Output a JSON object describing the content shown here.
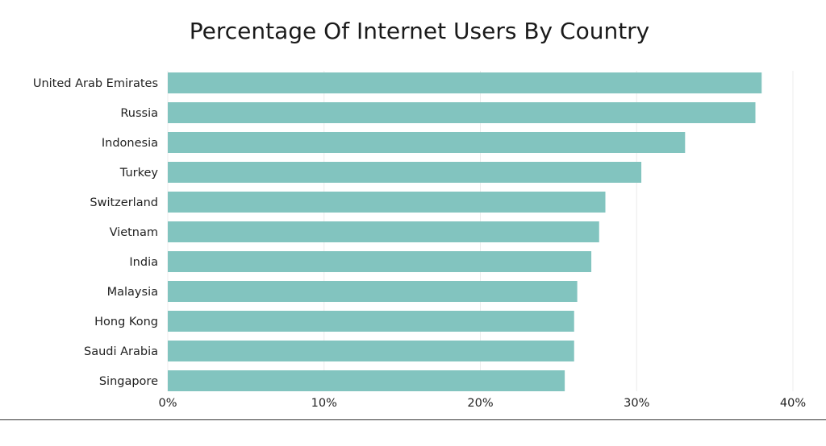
{
  "chart_data": {
    "type": "bar",
    "orientation": "horizontal",
    "title": "Percentage Of Internet Users By Country",
    "xlabel": "",
    "ylabel": "",
    "categories": [
      "United Arab Emirates",
      "Russia",
      "Indonesia",
      "Turkey",
      "Switzerland",
      "Vietnam",
      "India",
      "Malaysia",
      "Hong Kong",
      "Saudi Arabia",
      "Singapore"
    ],
    "values": [
      38.0,
      37.6,
      33.1,
      30.3,
      28.0,
      27.6,
      27.1,
      26.2,
      26.0,
      26.0,
      25.4
    ],
    "xlim": [
      0,
      40
    ],
    "x_ticks": [
      0,
      10,
      20,
      30,
      40
    ],
    "x_tick_labels": [
      "0%",
      "10%",
      "20%",
      "30%",
      "40%"
    ],
    "grid": true,
    "legend": "none",
    "bar_color": "#82c4bf"
  }
}
